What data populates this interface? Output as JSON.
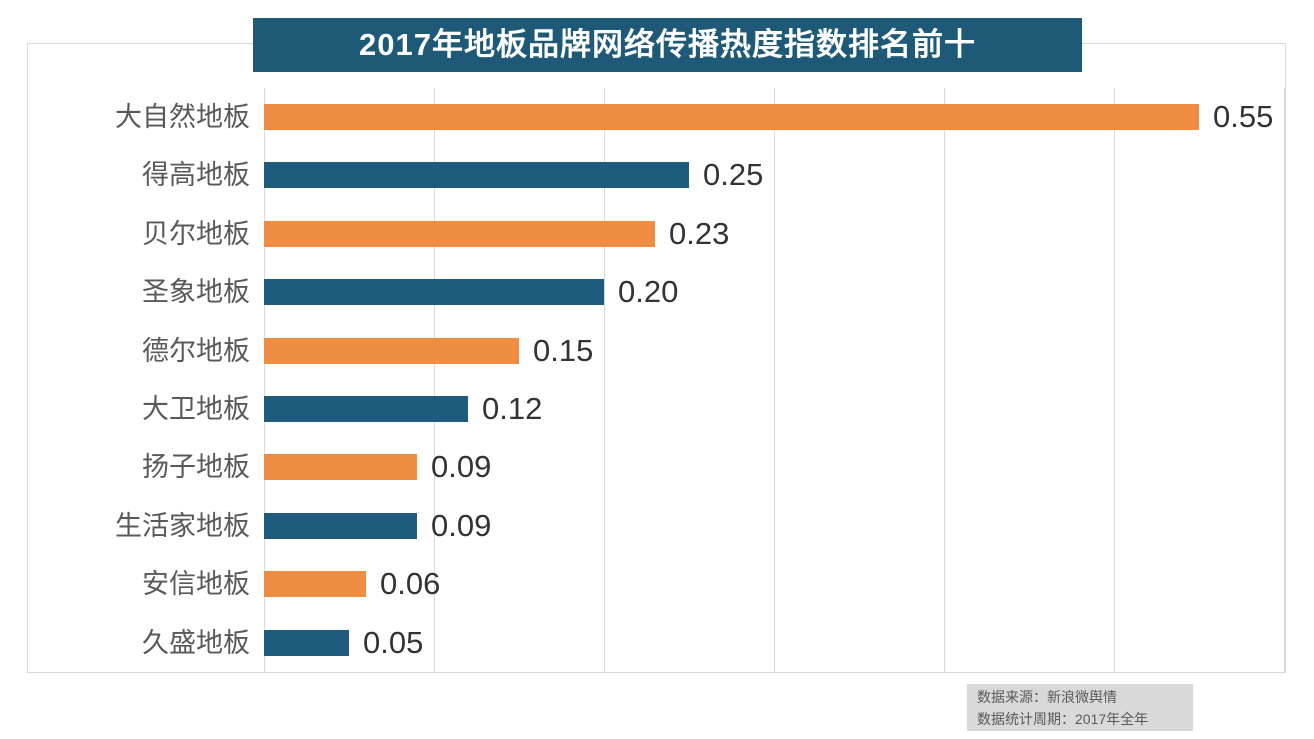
{
  "colors": {
    "bar_orange": "#ef8e43",
    "bar_teal": "#1f5b7c",
    "title_bg": "#1e5a78",
    "title_text": "#ffffff",
    "grid": "#d9d9d9",
    "label_text": "#595959",
    "value_text": "#333333",
    "note_bg": "#d9d9d9",
    "note_text": "#595959"
  },
  "chart_data": {
    "type": "bar",
    "orientation": "horizontal",
    "title": "2017年地板品牌网络传播热度指数排名前十",
    "categories": [
      "大自然地板",
      "得高地板",
      "贝尔地板",
      "圣象地板",
      "德尔地板",
      "大卫地板",
      "扬子地板",
      "生活家地板",
      "安信地板",
      "久盛地板"
    ],
    "values": [
      0.55,
      0.25,
      0.23,
      0.2,
      0.15,
      0.12,
      0.09,
      0.09,
      0.06,
      0.05
    ],
    "value_labels": [
      "0.55",
      "0.25",
      "0.23",
      "0.20",
      "0.15",
      "0.12",
      "0.09",
      "0.09",
      "0.06",
      "0.05"
    ],
    "bar_color_pattern": [
      "#ef8e43",
      "#1f5b7c"
    ],
    "xlabel": "",
    "ylabel": "",
    "xlim": [
      0,
      0.6
    ],
    "grid_step": 0.1,
    "grid": "on",
    "legend": "none",
    "data_labels": "outside-end"
  },
  "footer": {
    "line1": "数据来源：新浪微舆情",
    "line2": "数据统计周期：2017年全年"
  }
}
